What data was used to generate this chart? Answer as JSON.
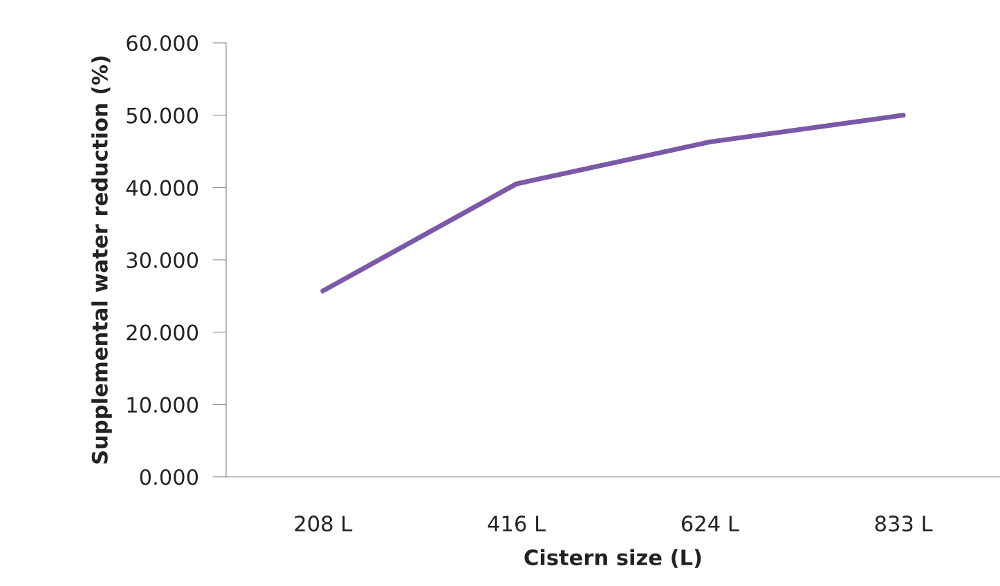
{
  "chart_data": {
    "type": "line",
    "xlabel": "Cistern size (L)",
    "ylabel": "Supplemental water reduction (%)",
    "categories": [
      "208 L",
      "416 L",
      "624 L",
      "833 L"
    ],
    "series": [
      {
        "color": "#7b59a8",
        "values": [
          25.7,
          40.5,
          46.3,
          50.0
        ]
      }
    ],
    "ylim": [
      0,
      60
    ],
    "yticks": [
      {
        "value": 0,
        "label": "0.000"
      },
      {
        "value": 10,
        "label": "10.000"
      },
      {
        "value": 20,
        "label": "20.000"
      },
      {
        "value": 30,
        "label": "30.000"
      },
      {
        "value": 40,
        "label": "40.000"
      },
      {
        "value": 50,
        "label": "50.000"
      },
      {
        "value": 60,
        "label": "60.000"
      }
    ],
    "grid": false,
    "marker": "none",
    "line_style": "solid"
  }
}
